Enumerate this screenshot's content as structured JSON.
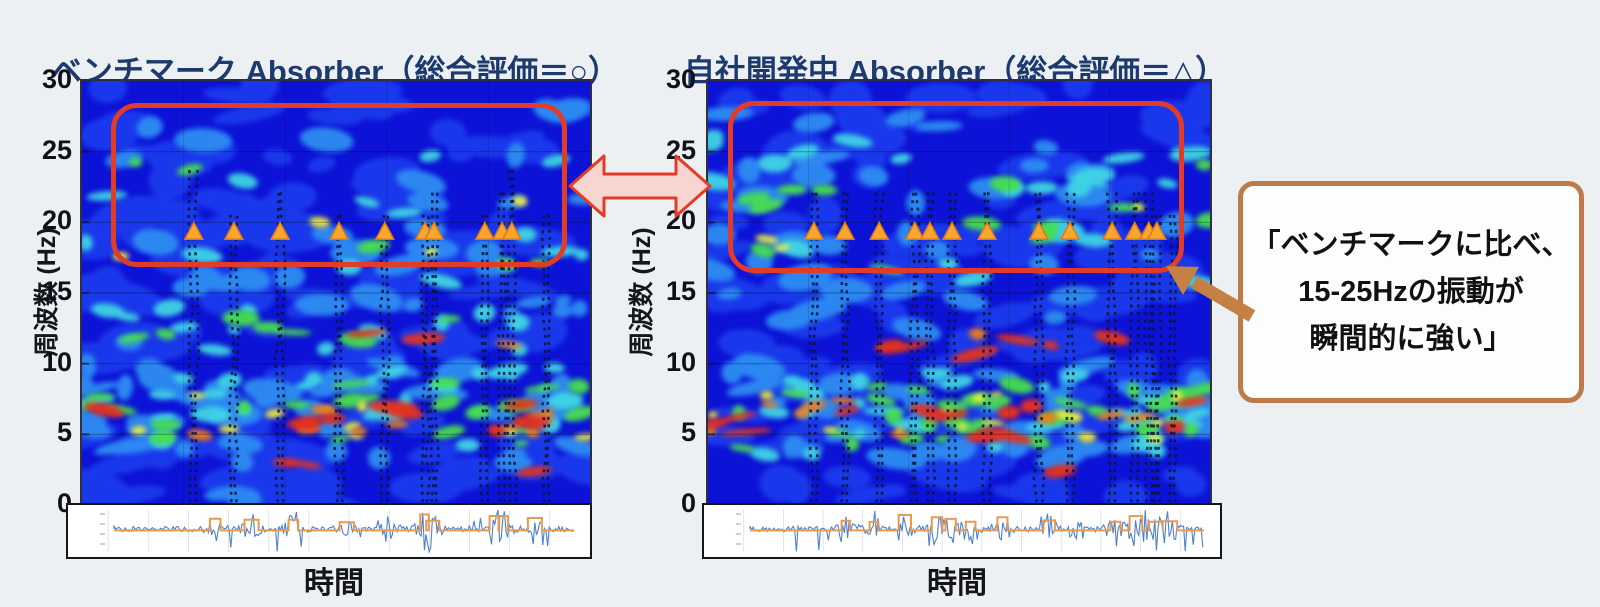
{
  "page": {
    "background_color": "#edf0f2",
    "title_color": "#1c3a6e"
  },
  "annotations": {
    "callout": {
      "lines": [
        "「ベンチマークに比べ、",
        "15-25Hzの振動が",
        "瞬間的に強い」"
      ],
      "border_color": "#bf7a49",
      "arrow_color": "#c58143",
      "background": "#fcfdfe",
      "text_color": "#111111"
    },
    "comparison_arrow": {
      "fill": "#f7d6d1",
      "stroke": "#e23b28"
    },
    "highlight_box_color": "#e23b28",
    "impact_marker_color": "#f7a62e",
    "impact_marker_edge_color": "#e0761c"
  },
  "chart_data": [
    {
      "type": "heatmap",
      "subtype": "time-frequency-spectrogram",
      "title": "ベンチマーク Absorber（総合評価＝○）",
      "evaluation": "○",
      "xlabel": "時間",
      "ylabel": "周波数 (Hz)",
      "ylim": [
        0,
        30
      ],
      "yticks": [
        0,
        5,
        10,
        15,
        20,
        25,
        30
      ],
      "grid": true,
      "colormap": "jet",
      "main_energy_band_hz": [
        4,
        9
      ],
      "highlight_region": {
        "f_low_hz": 16.5,
        "f_high_hz": 28,
        "note": "15-25Hz帯域を赤枠で強調"
      },
      "impact_marker_freq_hz": 20,
      "impact_marker_times": [
        0.22,
        0.299,
        0.39,
        0.506,
        0.596,
        0.675,
        0.693,
        0.793,
        0.827,
        0.846
      ],
      "impact_event_times": [
        0.22,
        0.299,
        0.39,
        0.506,
        0.596,
        0.675,
        0.693,
        0.793,
        0.827,
        0.846,
        0.915
      ],
      "band_15_25hz_intensity": "weaker",
      "inset_waveform": {
        "series": [
          {
            "name": "blue-vibration-waveform",
            "color": "#4f80d0"
          },
          {
            "name": "orange-impact-envelope",
            "color": "#e59b52"
          }
        ]
      }
    },
    {
      "type": "heatmap",
      "subtype": "time-frequency-spectrogram",
      "title": "自社開発中 Absorber（総合評価＝△）",
      "evaluation": "△",
      "xlabel": "時間",
      "ylabel": "周波数 (Hz)",
      "ylim": [
        0,
        30
      ],
      "yticks": [
        0,
        5,
        10,
        15,
        20,
        25,
        30
      ],
      "grid": true,
      "colormap": "jet",
      "main_energy_band_hz": [
        4,
        9
      ],
      "highlight_region": {
        "f_low_hz": 16,
        "f_high_hz": 28.5,
        "note": "15-25Hz帯域を赤枠で強調"
      },
      "impact_marker_freq_hz": 20,
      "impact_marker_times": [
        0.211,
        0.273,
        0.341,
        0.412,
        0.442,
        0.486,
        0.556,
        0.659,
        0.721,
        0.805,
        0.85,
        0.878,
        0.894
      ],
      "impact_event_times": [
        0.211,
        0.273,
        0.341,
        0.412,
        0.442,
        0.486,
        0.556,
        0.659,
        0.721,
        0.805,
        0.85,
        0.878,
        0.894,
        0.925
      ],
      "band_15_25hz_intensity": "stronger (momentarily strong 15-25Hz vibration)",
      "inset_waveform": {
        "series": [
          {
            "name": "blue-vibration-waveform",
            "color": "#4f80d0"
          },
          {
            "name": "orange-impact-envelope",
            "color": "#e59b52"
          }
        ]
      }
    }
  ]
}
